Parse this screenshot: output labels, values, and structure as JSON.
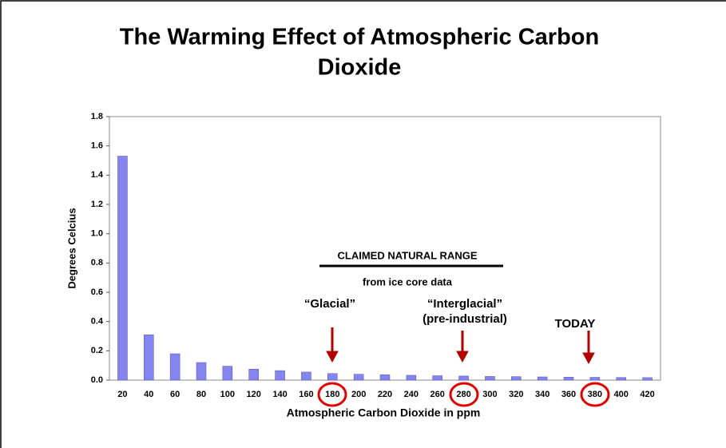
{
  "chart_data": {
    "type": "bar",
    "title": "The Warming Effect of Atmospheric Carbon",
    "title_line2": "Dioxide",
    "x_label": "Atmospheric Carbon Dioxide in ppm",
    "y_label": "Degrees Celcius",
    "categories": [
      "20",
      "40",
      "60",
      "80",
      "100",
      "120",
      "140",
      "160",
      "180",
      "200",
      "220",
      "240",
      "260",
      "280",
      "300",
      "320",
      "340",
      "360",
      "380",
      "400",
      "420"
    ],
    "values": [
      1.53,
      0.31,
      0.18,
      0.12,
      0.095,
      0.075,
      0.065,
      0.055,
      0.045,
      0.04,
      0.037,
      0.033,
      0.03,
      0.028,
      0.025,
      0.024,
      0.022,
      0.02,
      0.019,
      0.018,
      0.017
    ],
    "color": "#8585f0",
    "ylim": [
      0,
      1.8
    ],
    "yticks": [
      {
        "value": 0,
        "label": "0.0"
      },
      0.2,
      0.4,
      0.6,
      0.8,
      {
        "value": 1,
        "label": "1.0"
      },
      1.2,
      1.4,
      1.6,
      1.8
    ],
    "annotations": [
      "CLAIMED NATURAL RANGE",
      "from ice core data",
      "“Glacial”",
      "“Interglacial”",
      "(pre-industrial)",
      "TODAY"
    ]
  }
}
